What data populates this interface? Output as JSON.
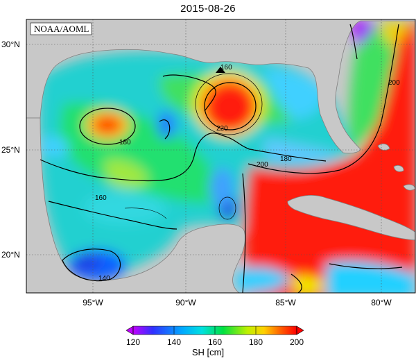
{
  "title": "2015-08-26",
  "credit": "NOAA/AOML",
  "lat_labels": [
    "30°N",
    "25°N",
    "20°N"
  ],
  "lon_labels": [
    "95°W",
    "90°W",
    "85°W",
    "80°W"
  ],
  "colorbar": {
    "label": "SH [cm]",
    "ticks": [
      "120",
      "140",
      "160",
      "180",
      "200"
    ],
    "min": 120,
    "max": 200,
    "colors": [
      "#b000ff",
      "#0040ff",
      "#00c8ff",
      "#00e040",
      "#f0f000",
      "#ff8000",
      "#ff0000"
    ]
  },
  "contour_labels": [
    "140",
    "160",
    "180",
    "200",
    "220"
  ],
  "colors": {
    "land": "#c8c8c8",
    "warm": "#ff1a0a",
    "cool": "#38b8ff"
  }
}
